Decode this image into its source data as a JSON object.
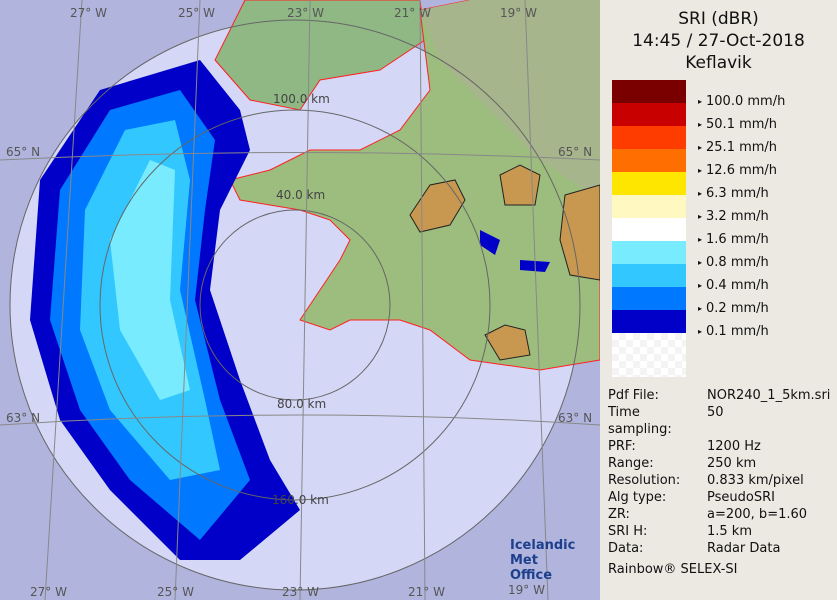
{
  "title": {
    "product": "SRI (dBR)",
    "datetime": "14:45 / 27-Oct-2018",
    "site": "Keflavik"
  },
  "legend": [
    {
      "color": "#7a0000",
      "label": "100.0 mm/h"
    },
    {
      "color": "#c80000",
      "label": "50.1 mm/h"
    },
    {
      "color": "#ff3c00",
      "label": "25.1 mm/h"
    },
    {
      "color": "#ff6e00",
      "label": "12.6 mm/h"
    },
    {
      "color": "#ffe600",
      "label": "6.3 mm/h"
    },
    {
      "color": "#fff8c0",
      "label": "3.2 mm/h"
    },
    {
      "color": "#ffffff",
      "label": "1.6 mm/h"
    },
    {
      "color": "#78ebff",
      "label": "0.8 mm/h"
    },
    {
      "color": "#32c8ff",
      "label": "0.4 mm/h"
    },
    {
      "color": "#0078ff",
      "label": "0.2 mm/h"
    },
    {
      "color": "#0000c8",
      "label": "0.1 mm/h"
    }
  ],
  "info": [
    {
      "k": "Pdf File:",
      "v": "NOR240_1_5km.sri"
    },
    {
      "k": "Time sampling:",
      "v": "50"
    },
    {
      "k": "PRF:",
      "v": "1200 Hz"
    },
    {
      "k": "Range:",
      "v": "250 km"
    },
    {
      "k": "Resolution:",
      "v": "0.833 km/pixel"
    },
    {
      "k": "Alg type:",
      "v": "PseudoSRI"
    },
    {
      "k": "ZR:",
      "v": "a=200, b=1.60"
    },
    {
      "k": "SRI H:",
      "v": "1.5 km"
    },
    {
      "k": "Data:",
      "v": "Radar Data"
    }
  ],
  "credit": "Rainbow® SELEX-SI",
  "map": {
    "lon_top": [
      "27° W",
      "25° W",
      "23° W",
      "21° W",
      "19° W"
    ],
    "lon_bottom": [
      "27° W",
      "25° W",
      "23° W",
      "21° W",
      "19° W"
    ],
    "lat_left": [
      "65° N",
      "63° N"
    ],
    "lat_right": [
      "65° N",
      "63° N"
    ],
    "ranges": [
      "100.0 km",
      "40.0 km",
      "80.0 km",
      "160.0 km"
    ],
    "logo": [
      "Icelandic Met",
      "Office"
    ]
  }
}
